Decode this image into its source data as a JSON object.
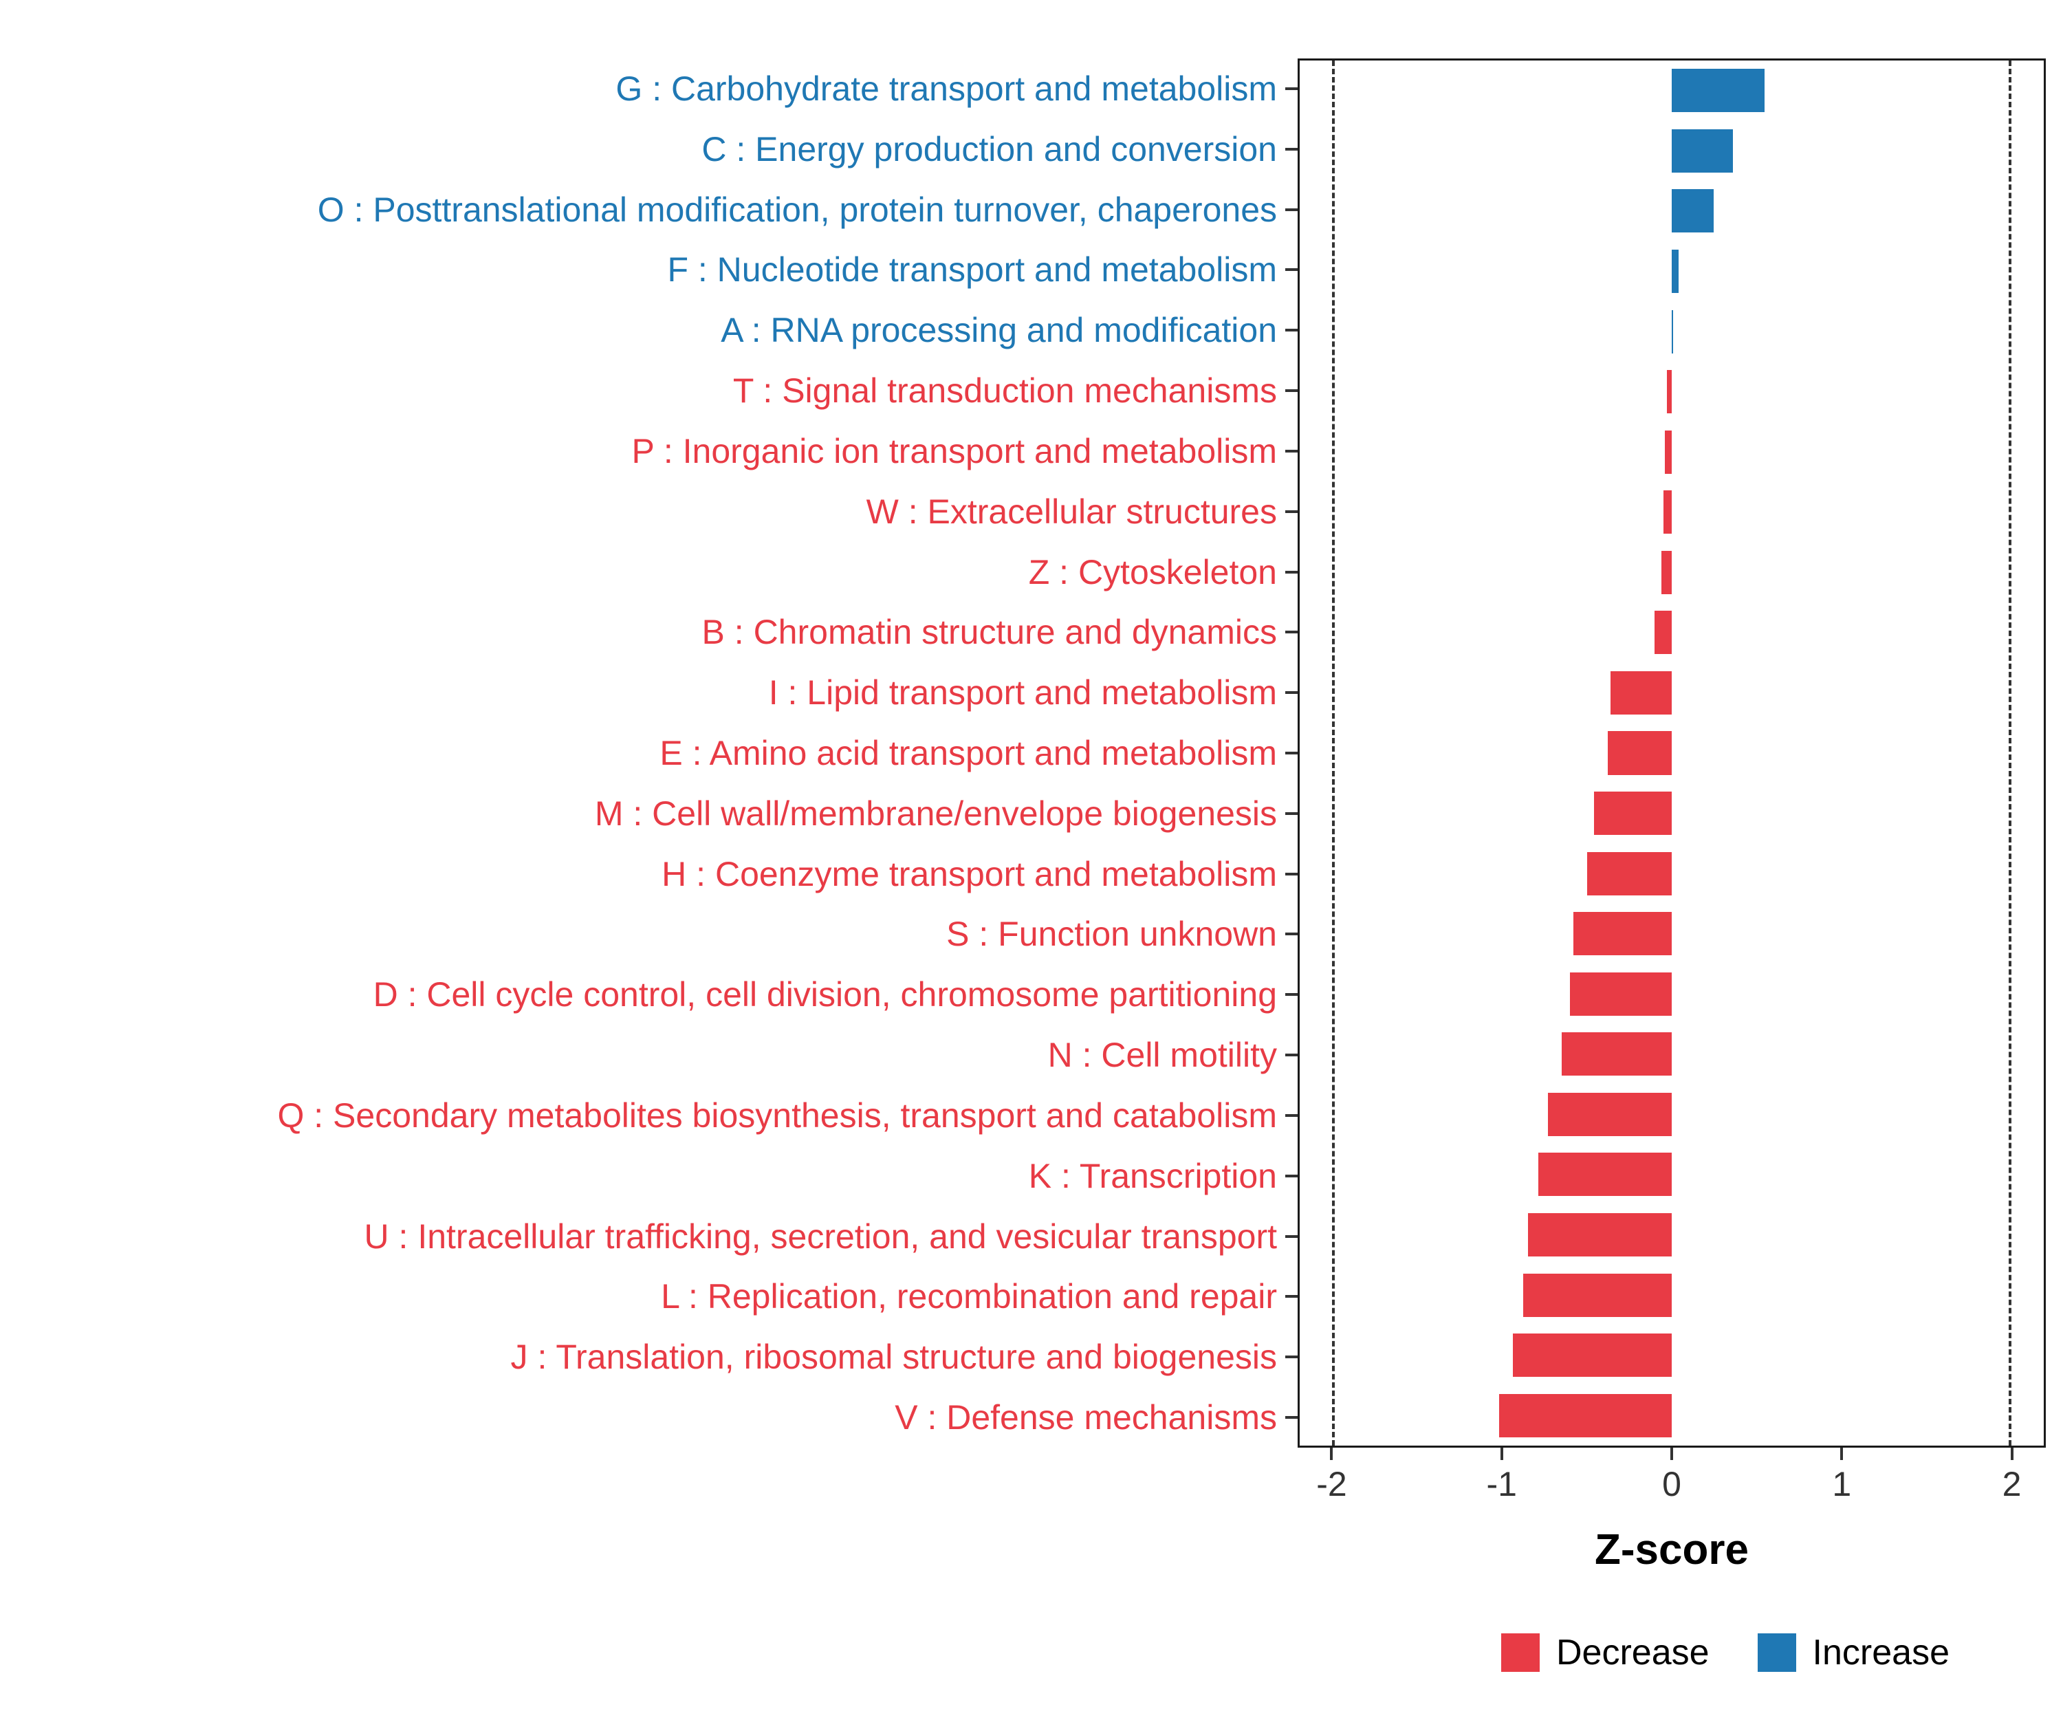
{
  "chart_data": {
    "type": "bar",
    "orientation": "horizontal",
    "title": "",
    "xlabel": "Z-score",
    "xlim": [
      -2.2,
      2.2
    ],
    "x_ticks": [
      -2,
      -1,
      0,
      1,
      2
    ],
    "reference_lines": [
      -2,
      2
    ],
    "grid": false,
    "colors": {
      "increase": "#1F78B4",
      "decrease": "#E83B45"
    },
    "legend": {
      "position": "bottom-right",
      "decrease": {
        "label": "Decrease",
        "color": "#E83B45"
      },
      "increase": {
        "label": "Increase",
        "color": "#1F78B4"
      }
    },
    "categories": [
      "G : Carbohydrate transport and metabolism",
      "C : Energy production and conversion",
      "O : Posttranslational modification, protein turnover, chaperones",
      "F : Nucleotide transport and metabolism",
      "A : RNA processing and modification",
      "T : Signal transduction mechanisms",
      "P : Inorganic ion transport and metabolism",
      "W : Extracellular structures",
      "Z : Cytoskeleton",
      "B : Chromatin structure and dynamics",
      "I : Lipid transport and metabolism",
      "E : Amino acid transport and metabolism",
      "M : Cell wall/membrane/envelope biogenesis",
      "H : Coenzyme transport and metabolism",
      "S : Function unknown",
      "D : Cell cycle control, cell division, chromosome partitioning",
      "N : Cell motility",
      "Q : Secondary metabolites biosynthesis, transport and catabolism",
      "K : Transcription",
      "U : Intracellular trafficking, secretion, and vesicular transport",
      "L : Replication, recombination and repair",
      "J : Translation, ribosomal structure and biogenesis",
      "V : Defense mechanisms"
    ],
    "values": [
      0.55,
      0.36,
      0.25,
      0.04,
      0.01,
      -0.03,
      -0.04,
      -0.05,
      -0.06,
      -0.1,
      -0.36,
      -0.38,
      -0.46,
      -0.5,
      -0.58,
      -0.6,
      -0.65,
      -0.73,
      -0.79,
      -0.85,
      -0.88,
      -0.94,
      -1.02
    ],
    "groups": [
      "Increase",
      "Increase",
      "Increase",
      "Increase",
      "Increase",
      "Decrease",
      "Decrease",
      "Decrease",
      "Decrease",
      "Decrease",
      "Decrease",
      "Decrease",
      "Decrease",
      "Decrease",
      "Decrease",
      "Decrease",
      "Decrease",
      "Decrease",
      "Decrease",
      "Decrease",
      "Decrease",
      "Decrease",
      "Decrease"
    ]
  }
}
